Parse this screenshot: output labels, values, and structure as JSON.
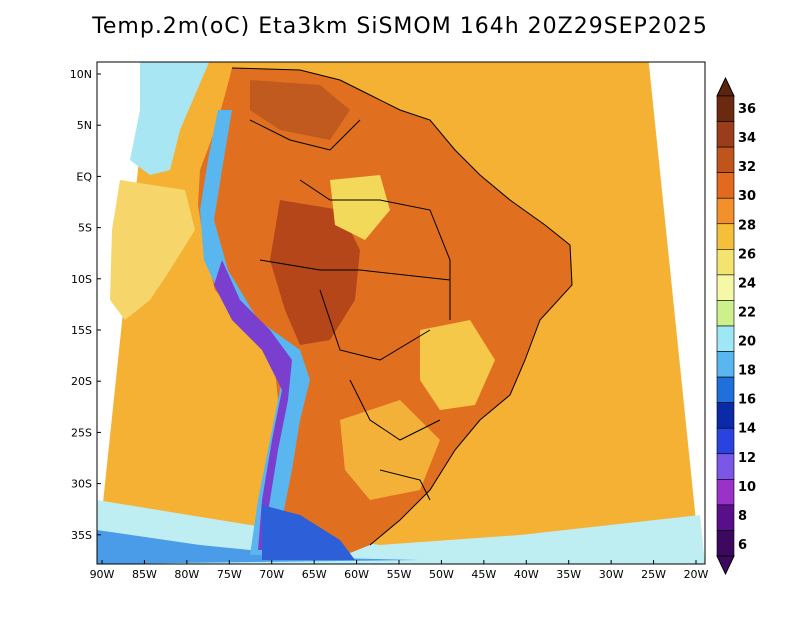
{
  "title": "Temp.2m(oC) Eta3km SiSMOM 164h 20Z29SEP2025",
  "lat_labels": [
    "10N",
    "5N",
    "EQ",
    "5S",
    "10S",
    "15S",
    "20S",
    "25S",
    "30S",
    "35S"
  ],
  "lon_labels": [
    "90W",
    "85W",
    "80W",
    "75W",
    "70W",
    "65W",
    "60W",
    "55W",
    "50W",
    "45W",
    "40W",
    "35W",
    "30W",
    "25W",
    "20W"
  ],
  "colorbar": {
    "labels": [
      "36",
      "34",
      "32",
      "30",
      "28",
      "26",
      "24",
      "22",
      "20",
      "18",
      "16",
      "14",
      "12",
      "10",
      "8",
      "6"
    ],
    "colors": [
      "#6b2a10",
      "#9a3d1a",
      "#c0541d",
      "#e26a1f",
      "#f2902c",
      "#f6bf3a",
      "#f3e470",
      "#f7f7a8",
      "#cdf08c",
      "#9ee8f6",
      "#59b6ef",
      "#1f6fdd",
      "#0a2aa8",
      "#2a42e0",
      "#7a57e6",
      "#9a32c8",
      "#5a0f8a",
      "#3d0960"
    ],
    "arrow_top_color": "#5a2410",
    "arrow_bottom_color": "#3d0960"
  },
  "map_colors": {
    "sea": "#f4b133",
    "land": "#e0701f",
    "hot": "#c9511b",
    "highland": "#f2e06a",
    "andes_cold": "#4a8ee8",
    "andes_very_cold": "#7b3fcf",
    "south_cold": "#2d5fd8"
  }
}
